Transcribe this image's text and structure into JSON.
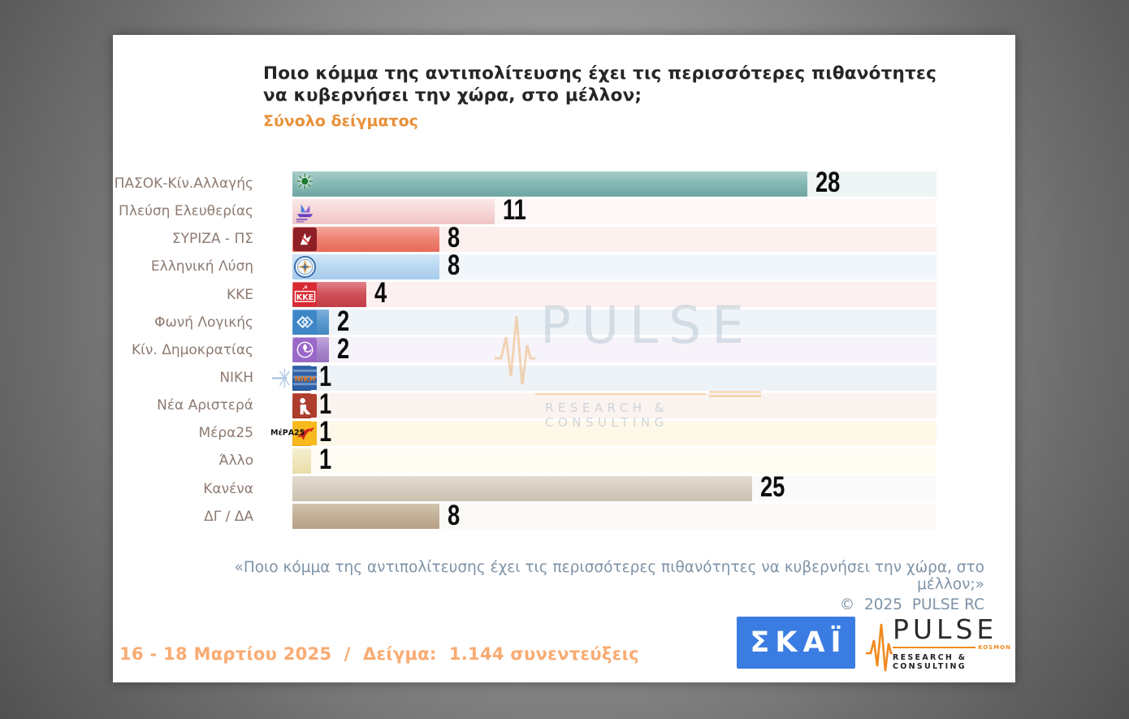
{
  "header": {
    "title_line1": "Ποιο κόμμα της αντιπολίτευσης έχει τις περισσότερες πιθανότητες",
    "title_line2": "να κυβερνήσει την χώρα, στο μέλλον;",
    "subtitle": "Σύνολο δείγματος"
  },
  "chart_data": {
    "type": "bar",
    "orientation": "horizontal",
    "title": "Ποιο κόμμα της αντιπολίτευσης έχει τις περισσότερες πιθανότητες να κυβερνήσει την χώρα, στο μέλλον;",
    "subtitle": "Σύνολο δείγματος",
    "unit": "%",
    "xlim": [
      0,
      35
    ],
    "grid": false,
    "categories": [
      "ΠΑΣΟΚ-Κίν.Αλλαγής",
      "Πλεύση Ελευθερίας",
      "ΣΥΡΙΖΑ - ΠΣ",
      "Ελληνική Λύση",
      "ΚΚΕ",
      "Φωνή Λογικής",
      "Κίν. Δημοκρατίας",
      "ΝΙΚΗ",
      "Νέα Αριστερά",
      "Μέρα25",
      "Άλλο",
      "Κανένα",
      "ΔΓ / ΔΑ"
    ],
    "values": [
      28,
      11,
      8,
      8,
      4,
      2,
      2,
      1,
      1,
      1,
      1,
      25,
      8
    ],
    "bars": [
      {
        "label": "ΠΑΣΟΚ-Κίν.Αλλαγής",
        "value": 28,
        "bar_colors": [
          "#a8cdca",
          "#85b8b4",
          "#6da5a1"
        ],
        "row_bg": "#eef5f4",
        "icon": "pasok-sun-logo"
      },
      {
        "label": "Πλεύση Ελευθερίας",
        "value": 11,
        "bar_colors": [
          "#fae8e8",
          "#f6d7d7",
          "#f0c6c6"
        ],
        "row_bg": "#fdf7f7",
        "icon": "plefsi-eleftherias-ship-logo"
      },
      {
        "label": "ΣΥΡΙΖΑ - ΠΣ",
        "value": 8,
        "bar_colors": [
          "#f3a89c",
          "#ee8374",
          "#e66a58"
        ],
        "row_bg": "#fcf1ee",
        "icon": "syriza-star-logo"
      },
      {
        "label": "Ελληνική Λύση",
        "value": 8,
        "bar_colors": [
          "#d4e6f8",
          "#bad9f2",
          "#a6cbeb"
        ],
        "row_bg": "#f1f6fb",
        "icon": "elliniki-lysi-compass-logo"
      },
      {
        "label": "ΚΚΕ",
        "value": 4,
        "bar_colors": [
          "#e08289",
          "#d05058",
          "#c23c46"
        ],
        "row_bg": "#fcf0f0",
        "icon": "kke-logo"
      },
      {
        "label": "Φωνή Λογικής",
        "value": 2,
        "bar_colors": [
          "#7db2db",
          "#5b9ace",
          "#4586c0"
        ],
        "row_bg": "#eff4f9",
        "icon": "foni-logikis-logo"
      },
      {
        "label": "Κίν. Δημοκρατίας",
        "value": 2,
        "bar_colors": [
          "#c2a7dd",
          "#a888cd",
          "#9571be"
        ],
        "row_bg": "#f6f4fa",
        "icon": "kinima-dimokratias-flower-logo"
      },
      {
        "label": "ΝΙΚΗ",
        "value": 1,
        "bar_colors": [
          "#4a77b0",
          "#2e5fa0",
          "#264f88"
        ],
        "row_bg": "#edf2f7",
        "icon": "niki-logo"
      },
      {
        "label": "Νέα Αριστερά",
        "value": 1,
        "bar_colors": [
          "#c05a48",
          "#ae3d2e",
          "#9c3526"
        ],
        "row_bg": "#fbf3ef",
        "icon": "nea-aristera-logo"
      },
      {
        "label": "Μέρα25",
        "value": 1,
        "bar_colors": [
          "#f9c74a",
          "#f6b122",
          "#efa312"
        ],
        "row_bg": "#fdf8e8",
        "icon": "mera25-swoosh-logo",
        "prefix": "ΜέΡΑ25"
      },
      {
        "label": "Άλλο",
        "value": 1,
        "bar_colors": [
          "#f6efcf",
          "#f0e7bd",
          "#e9dda8"
        ],
        "row_bg": "#fdfcf3",
        "icon": null
      },
      {
        "label": "Κανένα",
        "value": 25,
        "bar_colors": [
          "#e2dbd0",
          "#d7cfc1",
          "#cbc1b0"
        ],
        "row_bg": "#fbfafb",
        "icon": null
      },
      {
        "label": "ΔΓ / ΔΑ",
        "value": 8,
        "bar_colors": [
          "#d2c4ae",
          "#c3b198",
          "#b5a186"
        ],
        "row_bg": "#fbf9f6",
        "icon": null
      }
    ],
    "accent_colors": {
      "subtitle_orange": "#e8913a",
      "label_brown": "#8d7b71",
      "footer_bluegray": "#7e93a6",
      "date_orange": "#f9ab72",
      "skai_blue": "#3b7ce2",
      "pulse_orange": "#f08a1e"
    }
  },
  "watermark": {
    "brand": "PULSE",
    "tagline": "RESEARCH & CONSULTING"
  },
  "footer": {
    "quote": "«Ποιο κόμμα της αντιπολίτευσης έχει τις περισσότερες πιθανότητες να κυβερνήσει την χώρα, στο μέλλον;»",
    "copyright": "©  2025  PULSE RC",
    "fieldwork": "16 - 18 Μαρτίου 2025  /  Δείγμα:  1.144 συνεντεύξεις"
  },
  "logos": {
    "skai_text": "ΣΚΑΪ",
    "pulse_brand": "PULSE",
    "pulse_kosmon": "KOSMON",
    "pulse_tagline": "RESEARCH & CONSULTING"
  }
}
